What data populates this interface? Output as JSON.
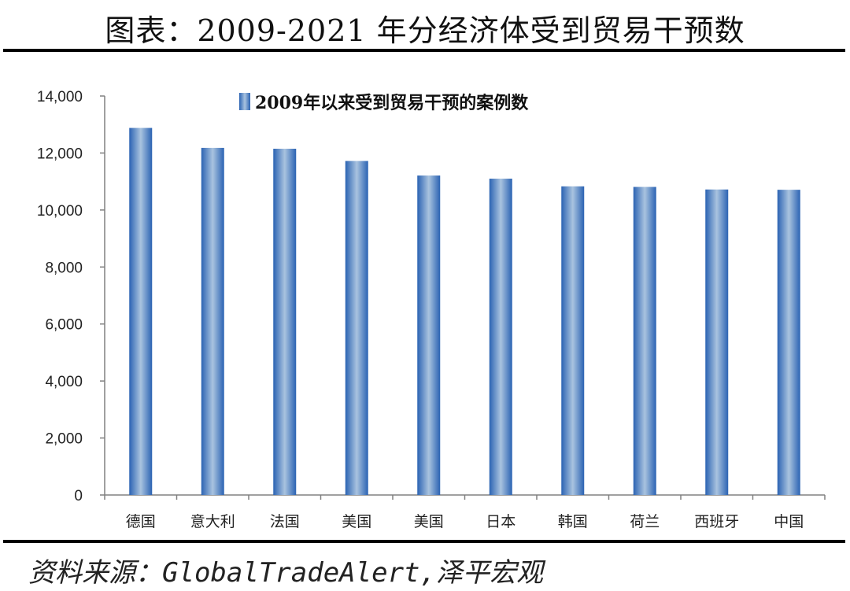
{
  "title": "图表：2009-2021 年分经济体受到贸易干预数",
  "source": "资料来源：GlobalTradeAlert,泽平宏观",
  "colors": {
    "bar_dark": "#2b63b3",
    "bar_light": "#a9c3df",
    "axis": "#808080"
  },
  "chart_data": {
    "type": "bar",
    "categories": [
      "德国",
      "意大利",
      "法国",
      "美国",
      "美国",
      "日本",
      "韩国",
      "荷兰",
      "西班牙",
      "中国"
    ],
    "series": [
      {
        "name": "2009年以来受到贸易干预的案例数",
        "values": [
          12880,
          12180,
          12150,
          11720,
          11210,
          11100,
          10830,
          10810,
          10720,
          10710
        ]
      }
    ],
    "ylim": [
      0,
      14000
    ],
    "yticks": [
      0,
      2000,
      4000,
      6000,
      8000,
      10000,
      12000,
      14000
    ],
    "ytick_labels": [
      "0",
      "2,000",
      "4,000",
      "6,000",
      "8,000",
      "10,000",
      "12,000",
      "14,000"
    ],
    "legend_position": "top-center",
    "grid": false
  }
}
